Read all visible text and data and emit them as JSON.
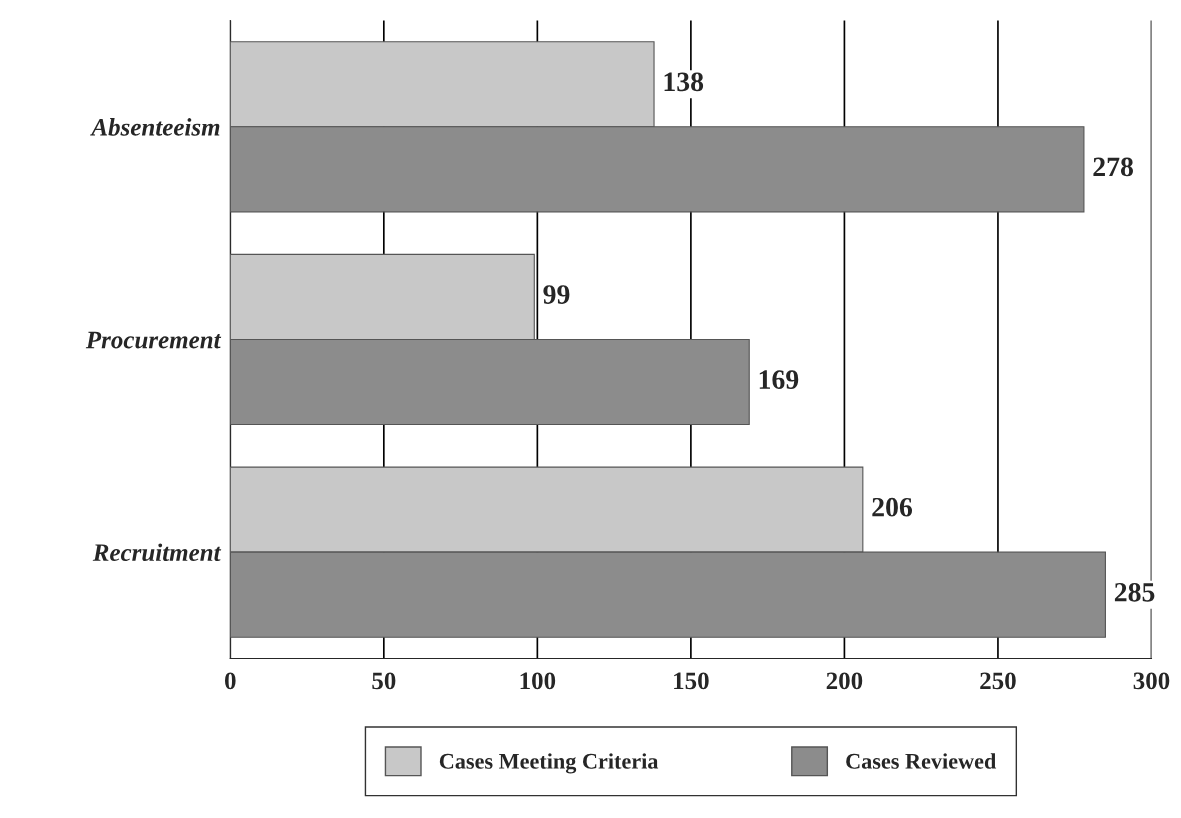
{
  "chart_data": {
    "type": "bar",
    "orientation": "horizontal",
    "categories": [
      "Absenteeism",
      "Procurement",
      "Recruitment"
    ],
    "series": [
      {
        "name": "Cases Meeting Criteria",
        "color": "#c8c8c8",
        "values": [
          138,
          99,
          206
        ]
      },
      {
        "name": "Cases Reviewed",
        "color": "#8c8c8c",
        "values": [
          278,
          169,
          285
        ]
      }
    ],
    "xlim": [
      0,
      300
    ],
    "xticks": [
      0,
      50,
      100,
      150,
      200,
      250,
      300
    ],
    "grid": "x",
    "legend": "bottom",
    "data_labels": true
  }
}
